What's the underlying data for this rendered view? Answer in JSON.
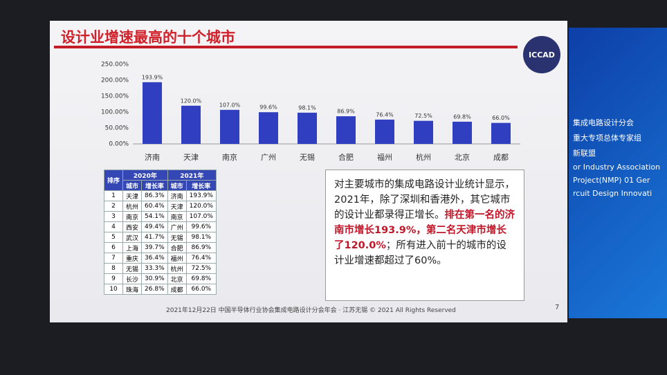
{
  "slide_title": "设计业增速最高的十个城市",
  "logo": "ICCAD",
  "chart_data": {
    "type": "bar",
    "categories": [
      "济南",
      "天津",
      "南京",
      "广州",
      "无锡",
      "合肥",
      "福州",
      "杭州",
      "北京",
      "成都"
    ],
    "values": [
      193.9,
      120.0,
      107.0,
      99.6,
      98.1,
      86.9,
      76.4,
      72.5,
      69.8,
      66.0
    ],
    "value_labels": [
      "193.9%",
      "120.0%",
      "107.0%",
      "99.6%",
      "98.1%",
      "86.9%",
      "76.4%",
      "72.5%",
      "69.8%",
      "66.0%"
    ],
    "color": "#2f3fc0",
    "ylim": [
      0,
      250
    ],
    "yticks": [
      {
        "value": 0,
        "label": "0.00%"
      },
      {
        "value": 50,
        "label": "50.00%"
      },
      {
        "value": 100,
        "label": "100.00%"
      },
      {
        "value": 150,
        "label": "150.00%"
      },
      {
        "value": 200,
        "label": "200.00%"
      },
      {
        "value": 250,
        "label": "250.00%"
      }
    ],
    "grid": false
  },
  "table": {
    "rank_header": "排序",
    "groups": [
      "2020年",
      "2021年"
    ],
    "subheaders": [
      "城市",
      "增长率",
      "城市",
      "增长率"
    ],
    "rows": [
      [
        "1",
        "天津",
        "86.3%",
        "济南",
        "193.9%"
      ],
      [
        "2",
        "杭州",
        "60.4%",
        "天津",
        "120.0%"
      ],
      [
        "3",
        "南京",
        "54.1%",
        "南京",
        "107.0%"
      ],
      [
        "4",
        "西安",
        "49.4%",
        "广州",
        "99.6%"
      ],
      [
        "5",
        "武汉",
        "41.7%",
        "无锡",
        "98.1%"
      ],
      [
        "6",
        "上海",
        "39.7%",
        "合肥",
        "86.9%"
      ],
      [
        "7",
        "重庆",
        "36.4%",
        "福州",
        "76.4%"
      ],
      [
        "8",
        "无锡",
        "33.3%",
        "杭州",
        "72.5%"
      ],
      [
        "9",
        "长沙",
        "30.9%",
        "北京",
        "69.8%"
      ],
      [
        "10",
        "珠海",
        "26.8%",
        "成都",
        "66.0%"
      ]
    ]
  },
  "commentary": {
    "intro": "对主要城市的集成电路设计业统计显示，2021年，除了深圳和香港外，其它城市的设计业都录得正增长。",
    "highlight": "排在第一名的济南市增长193.9%，第二名天津市增长了120.0%",
    "conclusion": "；所有进入前十的城市的设计业增速都超过了60%。"
  },
  "footer": "2021年12月22日 中国半导体行业协会集成电路设计分会年会 · 江苏无锡 © 2021 All Rights Reserved",
  "page_number": "7",
  "side_screen": [
    "集成电路设计分会",
    "重大专项总体专家组",
    "新联盟",
    "or Industry Association",
    "Project(NMP) 01 Ger",
    "rcuit Design Innovati"
  ]
}
